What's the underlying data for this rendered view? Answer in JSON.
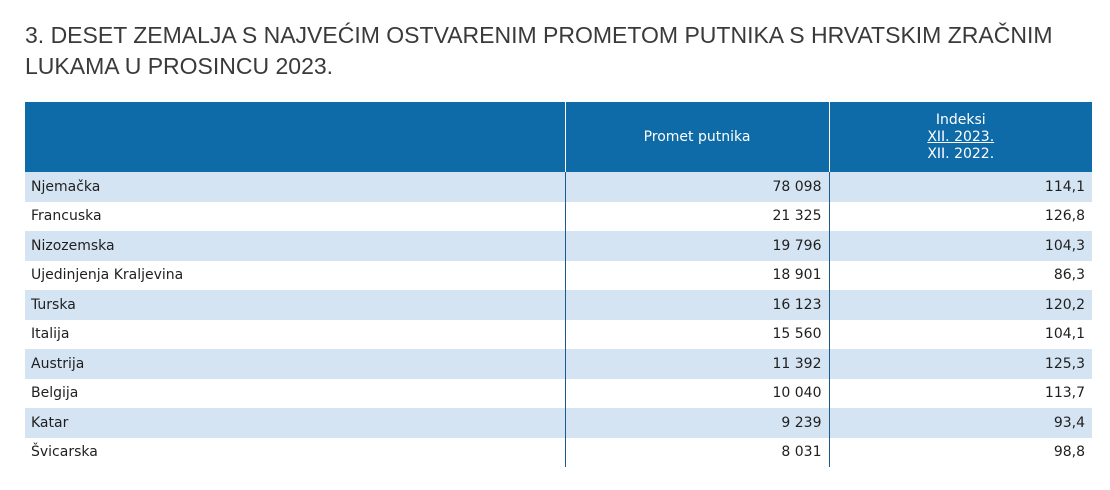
{
  "title": "3. DESET ZEMALJA S NAJVEĆIM OSTVARENIM PROMETOM PUTNIKA S HRVATSKIM ZRAČNIM LUKAMA U PROSINCU 2023.",
  "table": {
    "headers": {
      "country": "",
      "promet": "Promet putnika",
      "index_label": "Indeksi",
      "index_numerator": "XII. 2023.",
      "index_denominator": "XII. 2022."
    },
    "rows": [
      {
        "country": "Njemačka",
        "promet": "78 098",
        "index": "114,1"
      },
      {
        "country": "Francuska",
        "promet": "21 325",
        "index": "126,8"
      },
      {
        "country": "Nizozemska",
        "promet": "19 796",
        "index": "104,3"
      },
      {
        "country": "Ujedinjenja Kraljevina",
        "promet": "18 901",
        "index": "86,3"
      },
      {
        "country": "Turska",
        "promet": "16 123",
        "index": "120,2"
      },
      {
        "country": "Italija",
        "promet": "15 560",
        "index": "104,1"
      },
      {
        "country": "Austrija",
        "promet": "11 392",
        "index": "125,3"
      },
      {
        "country": "Belgija",
        "promet": "10 040",
        "index": "113,7"
      },
      {
        "country": "Katar",
        "promet": "9 239",
        "index": "93,4"
      },
      {
        "country": "Švicarska",
        "promet": "8 031",
        "index": "98,8"
      }
    ]
  },
  "colors": {
    "header_bg": "#0e6ba8",
    "row_stripe": "#d5e4f3",
    "text": "#1f1f1f"
  }
}
